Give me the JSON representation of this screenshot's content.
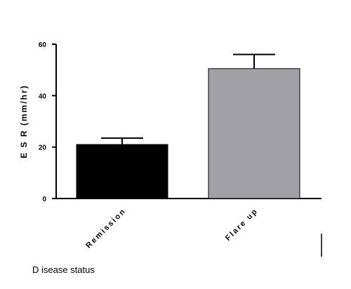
{
  "chart_data": {
    "type": "bar",
    "categories": [
      "Remission",
      "Flare up"
    ],
    "values": [
      21,
      50.5
    ],
    "error_bars": [
      2.5,
      5.5
    ],
    "bar_colors": [
      "#000000",
      "#a0a0a6"
    ],
    "ylabel": "E S R (mm/hr)",
    "xlabel": "D isease status",
    "ylim": [
      0,
      60
    ],
    "yticks": [
      "0",
      "20",
      "40",
      "60"
    ],
    "grid": false,
    "legend": "none"
  }
}
